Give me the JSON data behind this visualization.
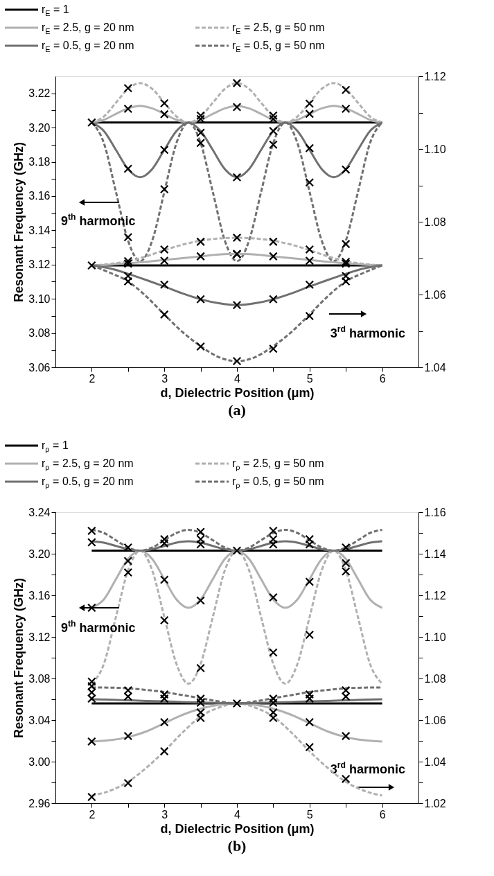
{
  "chart_data": [
    {
      "type": "line",
      "title": "(a)",
      "xlabel": "d, Dielectric Position (μm)",
      "ylabel": "Resonant Frequency (GHz)",
      "legend": "top",
      "line_style": "solid",
      "annotations": [
        "9$^{th}$ harmonic",
        "3$^{rd}$ harmonic"
      ],
      "xlim": [
        1.5,
        6.5
      ],
      "xticks": [
        2,
        {
          "value": 2.5,
          "label": null
        },
        3,
        {
          "value": 3.5,
          "label": null
        },
        4,
        {
          "value": 4.5,
          "label": null
        },
        5,
        {
          "value": 5.5,
          "label": null
        },
        6
      ],
      "ylim": [
        3.06,
        3.23
      ],
      "yticks": [
        3.06,
        {
          "value": 3.07,
          "label": null
        },
        3.08,
        {
          "value": 3.09,
          "label": null
        },
        {
          "value": 3.1,
          "label": "3.10"
        },
        {
          "value": 3.11,
          "label": null
        },
        3.12,
        {
          "value": 3.13,
          "label": null
        },
        3.14,
        {
          "value": 3.15,
          "label": null
        },
        3.16,
        {
          "value": 3.17,
          "label": null
        },
        3.18,
        {
          "value": 3.19,
          "label": null
        },
        {
          "value": 3.2,
          "label": "3.20"
        },
        {
          "value": 3.21,
          "label": null
        },
        3.22
      ],
      "y2lim": [
        1.04,
        1.12
      ],
      "y2ticks": [
        1.04,
        {
          "value": 1.05,
          "label": null
        },
        1.06,
        {
          "value": 1.07,
          "label": null
        },
        1.08,
        {
          "value": 1.09,
          "label": null
        },
        {
          "value": 1.1,
          "label": "1.10"
        },
        {
          "value": 1.11,
          "label": null
        },
        1.12
      ],
      "series": [
        {
          "name": "r$_{E}$ = 1",
          "color": "#000000",
          "x": [
            2,
            6
          ],
          "values": [
            3.203,
            3.203
          ]
        },
        {
          "name": "r$_{E}$ = 2.5, g = 20 nm",
          "color": "#b0b0b0",
          "x": [
            2,
            2.167,
            2.333,
            2.5,
            2.667,
            2.833,
            3,
            3.167,
            3.333,
            3.5,
            3.667,
            3.833,
            4,
            4.167,
            4.333,
            4.5,
            4.667,
            4.833,
            5,
            5.167,
            5.333,
            5.5,
            5.667,
            5.833,
            6
          ],
          "values": [
            3.203,
            3.2045,
            3.208,
            3.2112,
            3.2127,
            3.2112,
            3.208,
            3.2045,
            3.203,
            3.2045,
            3.208,
            3.2112,
            3.2127,
            3.2112,
            3.208,
            3.2045,
            3.203,
            3.2045,
            3.208,
            3.2112,
            3.2127,
            3.2112,
            3.208,
            3.2045,
            3.203
          ]
        },
        {
          "name": "r$_{E}$ = 2.5, g = 50 nm",
          "color": "#b0b0b0",
          "line_style": "dashed",
          "x": [
            2,
            2.167,
            2.333,
            2.5,
            2.667,
            2.833,
            3,
            3.167,
            3.333,
            3.5,
            3.667,
            3.833,
            4,
            4.167,
            4.333,
            4.5,
            4.667,
            4.833,
            5,
            5.167,
            5.333,
            5.5,
            5.667,
            5.833,
            6
          ],
          "values": [
            3.203,
            3.2065,
            3.2145,
            3.2226,
            3.226,
            3.2226,
            3.2145,
            3.2065,
            3.203,
            3.2065,
            3.2145,
            3.2226,
            3.226,
            3.2226,
            3.2145,
            3.2065,
            3.203,
            3.2065,
            3.2145,
            3.2226,
            3.226,
            3.2226,
            3.2145,
            3.2065,
            3.203
          ]
        },
        {
          "name": "r$_{E}$ = 0.5, g = 20 nm",
          "color": "#707070",
          "x": [
            2,
            2.167,
            2.333,
            2.5,
            2.667,
            2.833,
            3,
            3.167,
            3.333,
            3.5,
            3.667,
            3.833,
            4,
            4.167,
            4.333,
            4.5,
            4.667,
            4.833,
            5,
            5.167,
            5.333,
            5.5,
            5.667,
            5.833,
            6
          ],
          "values": [
            3.203,
            3.198,
            3.187,
            3.1758,
            3.171,
            3.1758,
            3.187,
            3.198,
            3.203,
            3.198,
            3.187,
            3.1758,
            3.171,
            3.1758,
            3.187,
            3.198,
            3.203,
            3.198,
            3.187,
            3.1758,
            3.171,
            3.1758,
            3.187,
            3.198,
            3.203
          ]
        },
        {
          "name": "r$_{E}$ = 0.5, g = 50 nm",
          "color": "#707070",
          "line_style": "dashed",
          "x": [
            2,
            2.167,
            2.333,
            2.5,
            2.667,
            2.833,
            3,
            3.167,
            3.333,
            3.5,
            3.667,
            3.833,
            4,
            4.167,
            4.333,
            4.5,
            4.667,
            4.833,
            5,
            5.167,
            5.333,
            5.5,
            5.667,
            5.833,
            6
          ],
          "values": [
            3.203,
            3.191,
            3.1625,
            3.134,
            3.122,
            3.134,
            3.1625,
            3.191,
            3.203,
            3.191,
            3.1625,
            3.134,
            3.122,
            3.134,
            3.1625,
            3.191,
            3.203,
            3.191,
            3.1625,
            3.134,
            3.122,
            3.134,
            3.1625,
            3.191,
            3.203
          ]
        },
        {
          "color": "#000000",
          "axis": "y2",
          "x": [
            2,
            6
          ],
          "values": [
            1.068,
            1.068
          ]
        },
        {
          "color": "#b0b0b0",
          "axis": "y2",
          "x": [
            2,
            2.25,
            2.5,
            2.75,
            3,
            3.25,
            3.5,
            3.75,
            4,
            4.25,
            4.5,
            4.75,
            5,
            5.25,
            5.5,
            5.75,
            6
          ],
          "values": [
            1.068,
            1.0682,
            1.0686,
            1.069,
            1.0695,
            1.07,
            1.0705,
            1.071,
            1.0712,
            1.071,
            1.0705,
            1.07,
            1.0695,
            1.069,
            1.0686,
            1.0682,
            1.068
          ]
        },
        {
          "color": "#b0b0b0",
          "line_style": "dashed",
          "axis": "y2",
          "x": [
            2,
            2.25,
            2.5,
            2.75,
            3,
            3.25,
            3.5,
            3.75,
            4,
            4.25,
            4.5,
            4.75,
            5,
            5.25,
            5.5,
            5.75,
            6
          ],
          "values": [
            1.068,
            1.0684,
            1.0692,
            1.0705,
            1.0722,
            1.0737,
            1.0748,
            1.0754,
            1.0756,
            1.0754,
            1.0748,
            1.0737,
            1.0722,
            1.0705,
            1.0692,
            1.0684,
            1.068
          ]
        },
        {
          "color": "#707070",
          "axis": "y2",
          "x": [
            2,
            2.25,
            2.5,
            2.75,
            3,
            3.25,
            3.5,
            3.75,
            4,
            4.25,
            4.5,
            4.75,
            5,
            5.25,
            5.5,
            5.75,
            6
          ],
          "values": [
            1.068,
            1.0672,
            1.0657,
            1.064,
            1.0622,
            1.0603,
            1.0587,
            1.0576,
            1.0571,
            1.0576,
            1.0587,
            1.0603,
            1.0622,
            1.064,
            1.0657,
            1.0672,
            1.068
          ]
        },
        {
          "color": "#707070",
          "line_style": "dashed",
          "axis": "y2",
          "x": [
            2,
            2.25,
            2.5,
            2.75,
            3,
            3.25,
            3.5,
            3.75,
            4,
            4.25,
            4.5,
            4.75,
            5,
            5.25,
            5.5,
            5.75,
            6
          ],
          "values": [
            1.068,
            1.066,
            1.0636,
            1.0595,
            1.0545,
            1.0497,
            1.0458,
            1.0428,
            1.0417,
            1.0428,
            1.0458,
            1.0497,
            1.0545,
            1.0595,
            1.0636,
            1.066,
            1.068
          ]
        },
        {
          "type": "scatter",
          "marker": "cross",
          "color": "#000000",
          "x": [
            2,
            2.5,
            2.5,
            2.5,
            2.5,
            3,
            3,
            3,
            3,
            3.5,
            3.5,
            3.5,
            3.5,
            4,
            4,
            4,
            4,
            4.5,
            4.5,
            4.5,
            4.5,
            5,
            5,
            5,
            5,
            5.5,
            5.5,
            5.5,
            5.5
          ],
          "values": [
            3.203,
            3.223,
            3.211,
            3.176,
            3.136,
            3.2142,
            3.2078,
            3.187,
            3.164,
            3.207,
            3.205,
            3.197,
            3.191,
            3.226,
            3.212,
            3.171,
            3.126,
            3.207,
            3.205,
            3.198,
            3.19,
            3.214,
            3.208,
            3.188,
            3.168,
            3.222,
            3.211,
            3.1755,
            3.132
          ]
        },
        {
          "type": "scatter",
          "marker": "cross",
          "color": "#000000",
          "axis": "y2",
          "x": [
            2,
            2.5,
            2.5,
            2.5,
            2.5,
            3,
            3,
            3,
            3,
            3.5,
            3.5,
            3.5,
            3.5,
            4,
            4,
            4,
            4,
            4.5,
            4.5,
            4.5,
            4.5,
            5,
            5,
            5,
            5,
            5.5,
            5.5,
            5.5,
            5.5
          ],
          "values": [
            1.068,
            1.0692,
            1.0685,
            1.0651,
            1.0636,
            1.0724,
            1.0693,
            1.0627,
            1.0545,
            1.0745,
            1.0705,
            1.0587,
            1.0457,
            1.0756,
            1.0712,
            1.0571,
            1.0417,
            1.0745,
            1.0705,
            1.0587,
            1.0451,
            1.0724,
            1.0693,
            1.0627,
            1.0541,
            1.069,
            1.0685,
            1.0651,
            1.0636
          ]
        }
      ]
    },
    {
      "type": "line",
      "title": "(b)",
      "xlabel": "d, Dielectric Position (μm)",
      "ylabel": "Resonant Frequency (GHz)",
      "legend": "top",
      "line_style": "solid",
      "annotations": [
        "9$^{th}$ harmonic",
        "3$^{rd}$ harmonic"
      ],
      "xlim": [
        1.5,
        6.5
      ],
      "xticks": [
        2,
        {
          "value": 2.5,
          "label": null
        },
        3,
        {
          "value": 3.5,
          "label": null
        },
        4,
        {
          "value": 4.5,
          "label": null
        },
        5,
        {
          "value": 5.5,
          "label": null
        },
        6
      ],
      "ylim": [
        2.96,
        3.24
      ],
      "yticks": [
        2.96,
        {
          "value": 2.98,
          "label": null
        },
        {
          "value": 3.0,
          "label": "3.00"
        },
        {
          "value": 3.02,
          "label": null
        },
        3.04,
        {
          "value": 3.06,
          "label": null
        },
        3.08,
        {
          "value": 3.1,
          "label": null
        },
        3.12,
        {
          "value": 3.14,
          "label": null
        },
        3.16,
        {
          "value": 3.18,
          "label": null
        },
        {
          "value": 3.2,
          "label": "3.20"
        },
        {
          "value": 3.22,
          "label": null
        },
        3.24
      ],
      "y2lim": [
        1.02,
        1.16
      ],
      "y2ticks": [
        1.02,
        {
          "value": 1.03,
          "label": null
        },
        1.04,
        {
          "value": 1.05,
          "label": null
        },
        1.06,
        {
          "value": 1.07,
          "label": null
        },
        1.08,
        {
          "value": 1.09,
          "label": null
        },
        {
          "value": 1.1,
          "label": "1.10"
        },
        {
          "value": 1.11,
          "label": null
        },
        1.12,
        {
          "value": 1.13,
          "label": null
        },
        1.14,
        {
          "value": 1.15,
          "label": null
        },
        1.16
      ],
      "series": [
        {
          "name": "r$_{ρ}$ = 1",
          "color": "#000000",
          "x": [
            2,
            6
          ],
          "values": [
            3.203,
            3.203
          ]
        },
        {
          "name": "r$_{ρ}$ = 2.5, g = 20 nm",
          "color": "#b0b0b0",
          "x": [
            2,
            2.167,
            2.333,
            2.5,
            2.667,
            2.833,
            3,
            3.167,
            3.333,
            3.5,
            3.667,
            3.833,
            4,
            4.167,
            4.333,
            4.5,
            4.667,
            4.833,
            5,
            5.167,
            5.333,
            5.5,
            5.667,
            5.833,
            6
          ],
          "values": [
            3.148,
            3.156,
            3.1755,
            3.195,
            3.203,
            3.195,
            3.1755,
            3.156,
            3.148,
            3.156,
            3.1755,
            3.195,
            3.203,
            3.195,
            3.1755,
            3.156,
            3.148,
            3.156,
            3.1755,
            3.195,
            3.203,
            3.195,
            3.1755,
            3.156,
            3.148
          ]
        },
        {
          "name": "r$_{ρ}$ = 2.5, g = 50 nm",
          "color": "#b0b0b0",
          "line_style": "dashed",
          "x": [
            2,
            2.167,
            2.333,
            2.5,
            2.667,
            2.833,
            3,
            3.167,
            3.333,
            3.5,
            3.667,
            3.833,
            4,
            4.167,
            4.333,
            4.5,
            4.667,
            4.833,
            5,
            5.167,
            5.333,
            5.5,
            5.667,
            5.833,
            6
          ],
          "values": [
            3.075,
            3.094,
            3.139,
            3.184,
            3.203,
            3.184,
            3.139,
            3.094,
            3.075,
            3.094,
            3.139,
            3.184,
            3.203,
            3.184,
            3.139,
            3.094,
            3.075,
            3.094,
            3.139,
            3.184,
            3.203,
            3.184,
            3.139,
            3.094,
            3.075
          ]
        },
        {
          "name": "r$_{ρ}$ = 0.5, g = 20 nm",
          "color": "#707070",
          "x": [
            2,
            2.167,
            2.333,
            2.5,
            2.667,
            2.833,
            3,
            3.167,
            3.333,
            3.5,
            3.667,
            3.833,
            4,
            4.167,
            4.333,
            4.5,
            4.667,
            4.833,
            5,
            5.167,
            5.333,
            5.5,
            5.667,
            5.833,
            6
          ],
          "values": [
            3.212,
            3.2107,
            3.2075,
            3.2044,
            3.203,
            3.2044,
            3.2075,
            3.2107,
            3.212,
            3.2107,
            3.2075,
            3.2044,
            3.203,
            3.2044,
            3.2075,
            3.2107,
            3.212,
            3.2107,
            3.2075,
            3.2044,
            3.203,
            3.2044,
            3.2075,
            3.2107,
            3.212
          ]
        },
        {
          "name": "r$_{ρ}$ = 0.5, g = 50 nm",
          "color": "#707070",
          "line_style": "dashed",
          "x": [
            2,
            2.167,
            2.333,
            2.5,
            2.667,
            2.833,
            3,
            3.167,
            3.333,
            3.5,
            3.667,
            3.833,
            4,
            4.167,
            4.333,
            4.5,
            4.667,
            4.833,
            5,
            5.167,
            5.333,
            5.5,
            5.667,
            5.833,
            6
          ],
          "values": [
            3.223,
            3.22,
            3.213,
            3.206,
            3.203,
            3.206,
            3.213,
            3.22,
            3.223,
            3.22,
            3.213,
            3.206,
            3.203,
            3.206,
            3.213,
            3.22,
            3.223,
            3.22,
            3.213,
            3.206,
            3.203,
            3.206,
            3.213,
            3.22,
            3.223
          ]
        },
        {
          "color": "#000000",
          "axis": "y2",
          "x": [
            2,
            6
          ],
          "values": [
            1.068,
            1.068
          ]
        },
        {
          "color": "#b0b0b0",
          "axis": "y2",
          "x": [
            2,
            2.25,
            2.5,
            2.75,
            3,
            3.25,
            3.5,
            3.75,
            4,
            4.25,
            4.5,
            4.75,
            5,
            5.25,
            5.5,
            5.75,
            6
          ],
          "values": [
            1.0497,
            1.0503,
            1.0518,
            1.0545,
            1.0585,
            1.0625,
            1.0655,
            1.0673,
            1.068,
            1.0673,
            1.0655,
            1.0625,
            1.0585,
            1.0545,
            1.0518,
            1.0503,
            1.0497
          ]
        },
        {
          "color": "#b0b0b0",
          "line_style": "dashed",
          "axis": "y2",
          "x": [
            2,
            2.25,
            2.5,
            2.75,
            3,
            3.25,
            3.5,
            3.75,
            4,
            4.25,
            4.5,
            4.75,
            5,
            5.25,
            5.5,
            5.75,
            6
          ],
          "values": [
            1.0237,
            1.026,
            1.0303,
            1.037,
            1.045,
            1.054,
            1.0617,
            1.066,
            1.068,
            1.066,
            1.0617,
            1.054,
            1.045,
            1.037,
            1.0303,
            1.026,
            1.0237
          ]
        },
        {
          "color": "#707070",
          "axis": "y2",
          "x": [
            2,
            2.25,
            2.5,
            2.75,
            3,
            3.25,
            3.5,
            3.75,
            4,
            4.25,
            4.5,
            4.75,
            5,
            5.25,
            5.5,
            5.75,
            6
          ],
          "values": [
            1.07,
            1.0698,
            1.0695,
            1.0692,
            1.069,
            1.0687,
            1.0684,
            1.0682,
            1.068,
            1.0682,
            1.0684,
            1.0687,
            1.069,
            1.0692,
            1.0695,
            1.0698,
            1.07
          ]
        },
        {
          "color": "#707070",
          "line_style": "dashed",
          "axis": "y2",
          "x": [
            2,
            2.25,
            2.5,
            2.75,
            3,
            3.25,
            3.5,
            3.75,
            4,
            4.25,
            4.5,
            4.75,
            5,
            5.25,
            5.5,
            5.75,
            6
          ],
          "values": [
            1.0757,
            1.0756,
            1.0753,
            1.0745,
            1.0735,
            1.072,
            1.0705,
            1.069,
            1.068,
            1.069,
            1.0705,
            1.072,
            1.0735,
            1.0745,
            1.0753,
            1.0756,
            1.0757
          ]
        },
        {
          "type": "scatter",
          "marker": "cross",
          "color": "#000000",
          "x": [
            2,
            2,
            2,
            2,
            2.5,
            2.5,
            2.5,
            3,
            3,
            3,
            3,
            3.5,
            3.5,
            3.5,
            3.5,
            3.5,
            4,
            4.5,
            4.5,
            4.5,
            4.5,
            4.5,
            5,
            5,
            5,
            5,
            5.5,
            5.5,
            5.5
          ],
          "values": [
            3.077,
            3.148,
            3.211,
            3.222,
            3.206,
            3.193,
            3.182,
            3.214,
            3.21,
            3.175,
            3.136,
            3.221,
            3.214,
            3.209,
            3.155,
            3.09,
            3.203,
            3.222,
            3.214,
            3.209,
            3.158,
            3.105,
            3.214,
            3.209,
            3.173,
            3.122,
            3.206,
            3.191,
            3.183
          ]
        },
        {
          "type": "scatter",
          "marker": "cross",
          "color": "#000000",
          "axis": "y2",
          "x": [
            2,
            2,
            2,
            2,
            2,
            2.5,
            2.5,
            2.5,
            2.5,
            3,
            3,
            3,
            3,
            3.5,
            3.5,
            3.5,
            3.5,
            4,
            4.5,
            4.5,
            4.5,
            4.5,
            5,
            5,
            5,
            5,
            5.5,
            5.5,
            5.5,
            5.5
          ],
          "values": [
            1.0763,
            1.0733,
            1.0703,
            1.0497,
            1.023,
            1.0743,
            1.0713,
            1.0523,
            1.0297,
            1.0723,
            1.0703,
            1.059,
            1.045,
            1.0703,
            1.0683,
            1.0637,
            1.061,
            1.068,
            1.0703,
            1.0683,
            1.0637,
            1.061,
            1.0723,
            1.0703,
            1.059,
            1.047,
            1.0743,
            1.0713,
            1.0523,
            1.0317
          ]
        }
      ]
    }
  ]
}
